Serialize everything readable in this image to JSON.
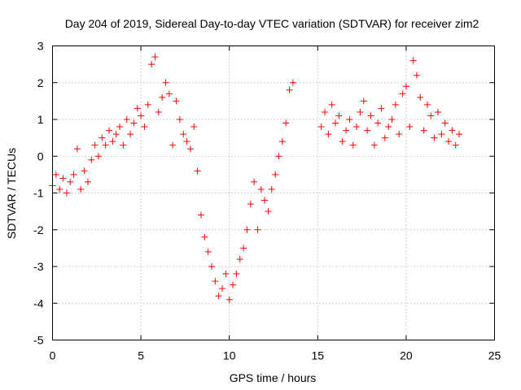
{
  "chart_data": {
    "type": "scatter",
    "title": "Day 204 of 2019, Sidereal Day-to-day VTEC variation (SDTVAR) for receiver zim2",
    "xlabel": "GPS time / hours",
    "ylabel": "SDTVAR / TECUs",
    "xlim": [
      0,
      25
    ],
    "ylim": [
      -5,
      3
    ],
    "x_ticks": [
      0,
      5,
      10,
      15,
      20,
      25
    ],
    "x_tick_labels": [
      "0",
      "5",
      "10",
      "15",
      "20",
      "25"
    ],
    "y_ticks": [
      -5,
      -4,
      -3,
      -2,
      -1,
      0,
      1,
      2,
      3
    ],
    "y_tick_labels": [
      "-5",
      "-4",
      "-3",
      "-2",
      "-1",
      "0",
      "1",
      "2",
      "3"
    ],
    "grid": true,
    "marker": "+",
    "marker_color": "#ff0000",
    "series": [
      {
        "name": "SDTVAR",
        "x": [
          0.0,
          0.2,
          0.4,
          0.6,
          0.8,
          1.0,
          1.2,
          1.4,
          1.6,
          1.8,
          2.0,
          2.2,
          2.4,
          2.6,
          2.8,
          3.0,
          3.2,
          3.4,
          3.6,
          3.8,
          4.0,
          4.2,
          4.4,
          4.6,
          4.8,
          5.0,
          5.2,
          5.4,
          5.6,
          5.8,
          6.0,
          6.2,
          6.4,
          6.6,
          6.8,
          7.0,
          7.2,
          7.4,
          7.6,
          7.8,
          8.0,
          8.2,
          8.4,
          8.6,
          8.8,
          9.0,
          9.2,
          9.4,
          9.6,
          9.8,
          10.0,
          10.2,
          10.4,
          10.6,
          10.8,
          11.0,
          11.2,
          11.4,
          11.6,
          11.8,
          12.0,
          12.2,
          12.4,
          12.6,
          12.8,
          13.0,
          13.2,
          13.4,
          13.6,
          15.2,
          15.4,
          15.6,
          15.8,
          16.0,
          16.2,
          16.4,
          16.6,
          16.8,
          17.0,
          17.2,
          17.4,
          17.6,
          17.8,
          18.0,
          18.2,
          18.4,
          18.6,
          18.8,
          19.0,
          19.2,
          19.4,
          19.6,
          19.8,
          20.0,
          20.2,
          20.4,
          20.6,
          20.8,
          21.0,
          21.2,
          21.4,
          21.6,
          21.8,
          22.0,
          22.2,
          22.4,
          22.6,
          22.8,
          23.0
        ],
        "y": [
          -0.8,
          -0.5,
          -0.9,
          -0.6,
          -1.0,
          -0.7,
          -0.5,
          0.2,
          -0.9,
          -0.4,
          -0.7,
          -0.1,
          0.3,
          0.0,
          0.5,
          0.3,
          0.7,
          0.4,
          0.6,
          0.8,
          0.3,
          1.0,
          0.6,
          0.9,
          1.3,
          1.1,
          0.8,
          1.4,
          2.5,
          2.7,
          1.2,
          1.6,
          2.0,
          1.7,
          0.3,
          1.5,
          1.0,
          0.6,
          0.4,
          0.2,
          0.8,
          -0.4,
          -1.6,
          -2.2,
          -2.6,
          -3.0,
          -3.4,
          -3.8,
          -3.6,
          -3.2,
          -3.9,
          -3.5,
          -3.2,
          -2.8,
          -2.5,
          -2.0,
          -1.3,
          -0.7,
          -2.0,
          -0.9,
          -1.2,
          -1.5,
          -0.9,
          -0.5,
          0.0,
          0.4,
          0.9,
          1.8,
          2.0,
          0.8,
          1.2,
          0.6,
          1.4,
          0.9,
          1.1,
          0.4,
          0.7,
          1.0,
          0.3,
          0.8,
          1.2,
          1.5,
          0.7,
          1.1,
          0.3,
          0.9,
          1.3,
          0.5,
          0.8,
          1.0,
          1.4,
          0.6,
          1.7,
          1.9,
          0.8,
          2.6,
          2.2,
          1.6,
          0.7,
          1.4,
          1.1,
          0.5,
          1.2,
          0.6,
          0.9,
          0.4,
          0.7,
          0.3,
          0.6
        ]
      }
    ]
  }
}
